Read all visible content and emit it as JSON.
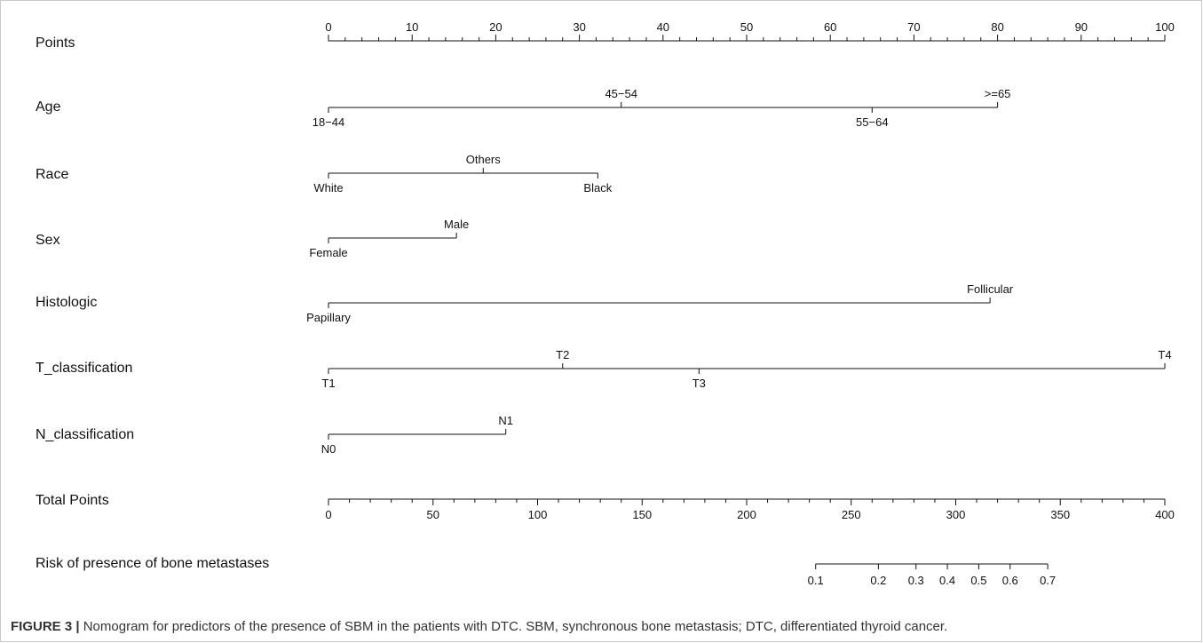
{
  "chart_data": {
    "type": "nomogram",
    "points_axis": {
      "label": "Points",
      "min": 0,
      "max": 100,
      "ticks": [
        0,
        10,
        20,
        30,
        40,
        50,
        60,
        70,
        80,
        90,
        100
      ],
      "minor_step": 2
    },
    "variables": [
      {
        "label": "Age",
        "levels": [
          {
            "name": "18−44",
            "points": 0,
            "side": "below"
          },
          {
            "name": "45−54",
            "points": 35,
            "side": "above"
          },
          {
            "name": "55−64",
            "points": 65,
            "side": "below"
          },
          {
            "name": ">=65",
            "points": 80,
            "side": "above"
          }
        ]
      },
      {
        "label": "Race",
        "levels": [
          {
            "name": "White",
            "points": 0,
            "side": "below"
          },
          {
            "name": "Others",
            "points": 18.5,
            "side": "above"
          },
          {
            "name": "Black",
            "points": 32.2,
            "side": "below"
          }
        ]
      },
      {
        "label": "Sex",
        "levels": [
          {
            "name": "Female",
            "points": 0,
            "side": "below"
          },
          {
            "name": "Male",
            "points": 15.3,
            "side": "above"
          }
        ]
      },
      {
        "label": "Histologic",
        "levels": [
          {
            "name": "Papillary",
            "points": 0,
            "side": "below"
          },
          {
            "name": "Follicular",
            "points": 79.1,
            "side": "above"
          }
        ]
      },
      {
        "label": "T_classification",
        "levels": [
          {
            "name": "T1",
            "points": 0,
            "side": "below"
          },
          {
            "name": "T2",
            "points": 28,
            "side": "above"
          },
          {
            "name": "T3",
            "points": 44.3,
            "side": "below"
          },
          {
            "name": "T4",
            "points": 100,
            "side": "above"
          }
        ]
      },
      {
        "label": "N_classification",
        "levels": [
          {
            "name": "N0",
            "points": 0,
            "side": "below"
          },
          {
            "name": "N1",
            "points": 21.2,
            "side": "above"
          }
        ]
      }
    ],
    "total_points_axis": {
      "label": "Total Points",
      "min": 0,
      "max": 400,
      "ticks": [
        0,
        50,
        100,
        150,
        200,
        250,
        300,
        350,
        400
      ],
      "minor_step": 10
    },
    "risk_axis": {
      "label": "Risk of presence of bone metastases",
      "ticks": [
        {
          "value": "0.1",
          "total_points": 233
        },
        {
          "value": "0.2",
          "total_points": 263
        },
        {
          "value": "0.3",
          "total_points": 281
        },
        {
          "value": "0.4",
          "total_points": 296
        },
        {
          "value": "0.5",
          "total_points": 311
        },
        {
          "value": "0.6",
          "total_points": 326
        },
        {
          "value": "0.7",
          "total_points": 344
        }
      ]
    }
  },
  "caption": {
    "figure_label": "FIGURE 3 |",
    "text": " Nomogram for predictors of the presence of SBM in the patients with DTC. SBM, synchronous bone metastasis; DTC, differentiated thyroid cancer."
  }
}
